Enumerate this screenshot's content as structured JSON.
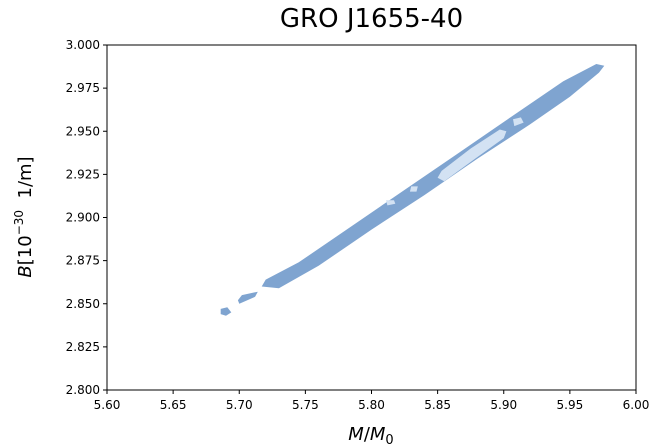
{
  "chart_data": {
    "type": "contour",
    "title": "GRO J1655-40",
    "xlabel": {
      "var": "M",
      "sep": "/",
      "var2": "M",
      "sub": "0"
    },
    "ylabel": {
      "var": "B",
      "pre": "[10",
      "exp": "−30",
      "post": "  1/m]"
    },
    "xlim": [
      5.6,
      6.0
    ],
    "ylim": [
      2.8,
      3.0
    ],
    "xticks": [
      "5.60",
      "5.65",
      "5.70",
      "5.75",
      "5.80",
      "5.85",
      "5.90",
      "5.95",
      "6.00"
    ],
    "yticks": [
      "2.800",
      "2.825",
      "2.850",
      "2.875",
      "2.900",
      "2.925",
      "2.950",
      "2.975",
      "3.000"
    ],
    "grid": false,
    "regions": [
      {
        "level": "outer",
        "color": "#7fa4d0",
        "polygon": [
          [
            5.686,
            2.844
          ],
          [
            5.69,
            2.843
          ],
          [
            5.694,
            2.845
          ],
          [
            5.691,
            2.848
          ],
          [
            5.686,
            2.847
          ]
        ]
      },
      {
        "level": "outer",
        "color": "#7fa4d0",
        "polygon": [
          [
            5.7,
            2.85
          ],
          [
            5.712,
            2.854
          ],
          [
            5.714,
            2.857
          ],
          [
            5.702,
            2.855
          ],
          [
            5.699,
            2.852
          ]
        ]
      },
      {
        "level": "outer",
        "color": "#7fa4d0",
        "polygon": [
          [
            5.717,
            2.86
          ],
          [
            5.73,
            2.859
          ],
          [
            5.76,
            2.872
          ],
          [
            5.8,
            2.893
          ],
          [
            5.84,
            2.913
          ],
          [
            5.88,
            2.934
          ],
          [
            5.92,
            2.954
          ],
          [
            5.95,
            2.97
          ],
          [
            5.972,
            2.984
          ],
          [
            5.976,
            2.988
          ],
          [
            5.97,
            2.989
          ],
          [
            5.945,
            2.979
          ],
          [
            5.905,
            2.958
          ],
          [
            5.865,
            2.937
          ],
          [
            5.825,
            2.916
          ],
          [
            5.785,
            2.895
          ],
          [
            5.745,
            2.874
          ],
          [
            5.72,
            2.864
          ]
        ]
      },
      {
        "level": "inner",
        "color": "#d3e2f3",
        "polygon": [
          [
            5.855,
            2.921
          ],
          [
            5.88,
            2.935
          ],
          [
            5.9,
            2.946
          ],
          [
            5.902,
            2.95
          ],
          [
            5.897,
            2.951
          ],
          [
            5.875,
            2.94
          ],
          [
            5.853,
            2.927
          ],
          [
            5.85,
            2.923
          ]
        ]
      },
      {
        "level": "inner",
        "color": "#d3e2f3",
        "polygon": [
          [
            5.829,
            2.915
          ],
          [
            5.834,
            2.915
          ],
          [
            5.835,
            2.918
          ],
          [
            5.83,
            2.918
          ]
        ]
      },
      {
        "level": "inner",
        "color": "#d3e2f3",
        "polygon": [
          [
            5.812,
            2.907
          ],
          [
            5.818,
            2.908
          ],
          [
            5.817,
            2.91
          ],
          [
            5.811,
            2.91
          ]
        ]
      },
      {
        "level": "inner",
        "color": "#d3e2f3",
        "polygon": [
          [
            5.908,
            2.953
          ],
          [
            5.915,
            2.955
          ],
          [
            5.913,
            2.958
          ],
          [
            5.907,
            2.957
          ]
        ]
      }
    ]
  }
}
